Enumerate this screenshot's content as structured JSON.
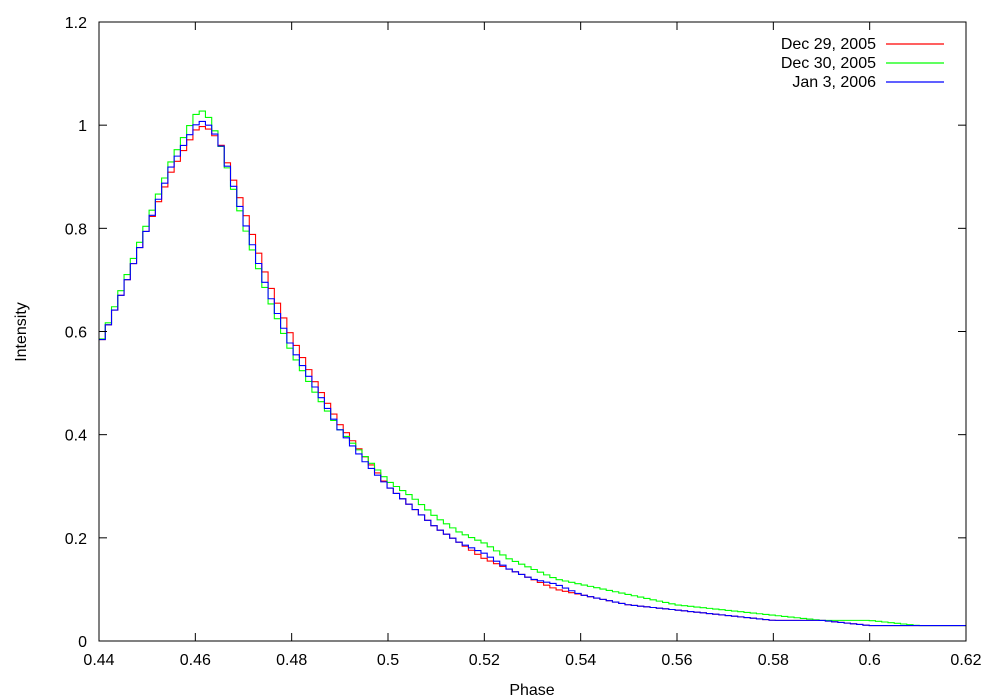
{
  "chart_data": {
    "type": "line",
    "title": "",
    "xlabel": "Phase",
    "ylabel": "Intensity",
    "xlim": [
      0.44,
      0.62
    ],
    "ylim": [
      0,
      1.2
    ],
    "x_ticks": [
      "0.44",
      "0.46",
      "0.48",
      "0.5",
      "0.52",
      "0.54",
      "0.56",
      "0.58",
      "0.6",
      "0.62"
    ],
    "y_ticks": [
      "0",
      "0.2",
      "0.4",
      "0.6",
      "0.8",
      "1",
      "1.2"
    ],
    "grid": false,
    "legend_position": "top-right",
    "step": true,
    "x": [
      0.44,
      0.445,
      0.45,
      0.455,
      0.46,
      0.462,
      0.465,
      0.47,
      0.475,
      0.48,
      0.485,
      0.49,
      0.495,
      0.5,
      0.505,
      0.51,
      0.515,
      0.52,
      0.525,
      0.53,
      0.535,
      0.54,
      0.545,
      0.55,
      0.56,
      0.57,
      0.58,
      0.59,
      0.6,
      0.61,
      0.62
    ],
    "series": [
      {
        "name": "Dec 29, 2005",
        "color": "#ff0000",
        "values": [
          0.57,
          0.68,
          0.8,
          0.91,
          0.99,
          1.0,
          0.97,
          0.84,
          0.7,
          0.59,
          0.5,
          0.42,
          0.36,
          0.3,
          0.26,
          0.22,
          0.19,
          0.16,
          0.14,
          0.12,
          0.1,
          0.09,
          0.08,
          0.07,
          0.06,
          0.05,
          0.04,
          0.04,
          0.03,
          0.03,
          0.03
        ]
      },
      {
        "name": "Dec 30, 2005",
        "color": "#00ff00",
        "values": [
          0.57,
          0.69,
          0.81,
          0.93,
          1.02,
          1.03,
          0.97,
          0.81,
          0.67,
          0.56,
          0.48,
          0.41,
          0.36,
          0.31,
          0.28,
          0.24,
          0.21,
          0.19,
          0.16,
          0.14,
          0.12,
          0.11,
          0.1,
          0.09,
          0.07,
          0.06,
          0.05,
          0.04,
          0.04,
          0.03,
          0.03
        ]
      },
      {
        "name": "Jan 3, 2006",
        "color": "#0000ff",
        "values": [
          0.57,
          0.68,
          0.8,
          0.92,
          1.0,
          1.01,
          0.97,
          0.82,
          0.68,
          0.57,
          0.49,
          0.41,
          0.35,
          0.3,
          0.26,
          0.22,
          0.19,
          0.17,
          0.14,
          0.12,
          0.11,
          0.09,
          0.08,
          0.07,
          0.06,
          0.05,
          0.04,
          0.04,
          0.03,
          0.03,
          0.03
        ]
      }
    ]
  }
}
